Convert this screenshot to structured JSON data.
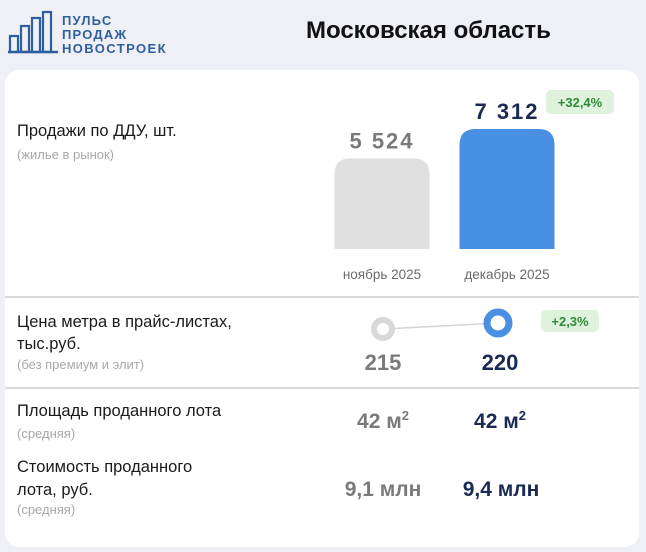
{
  "logo": {
    "line1": "ПУЛЬС",
    "line2": "ПРОДАЖ",
    "line3": "НОВОСТРОЕК"
  },
  "region": "Московская область",
  "colors": {
    "accent": "#4a90e2",
    "old_bar": "#e0e0e0",
    "badge_bg": "#dff3dc",
    "badge_text": "#2e8a3a",
    "dark_value": "#1a2a55",
    "grey_value": "#7a7a7a"
  },
  "sales": {
    "label": "Продажи по ДДУ, шт.",
    "sublabel": "(жилье в рынок)",
    "change": "+32,4%"
  },
  "price": {
    "label_line1": "Цена метра в прайс-листах,",
    "label_line2": "тыс.руб.",
    "sublabel": "(без премиум и элит)",
    "old_value": "215",
    "new_value": "220",
    "change": "+2,3%"
  },
  "area": {
    "label": "Площадь проданного лота",
    "sublabel": "(средняя)",
    "old_value": "42 м",
    "new_value": "42 м",
    "unit_sup": "2"
  },
  "cost": {
    "label_line1": "Стоимость проданного",
    "label_line2": "лота, руб.",
    "sublabel": "(средняя)",
    "old_value": "9,1 млн",
    "new_value": "9,4 млн"
  },
  "chart_data": {
    "type": "bar",
    "categories": [
      "ноябрь 2025",
      "декабрь 2025"
    ],
    "values": [
      5524,
      7312
    ],
    "value_labels": [
      "5 524",
      "7 312"
    ],
    "ylim": [
      0,
      7312
    ],
    "title": "",
    "xlabel": "",
    "ylabel": ""
  }
}
